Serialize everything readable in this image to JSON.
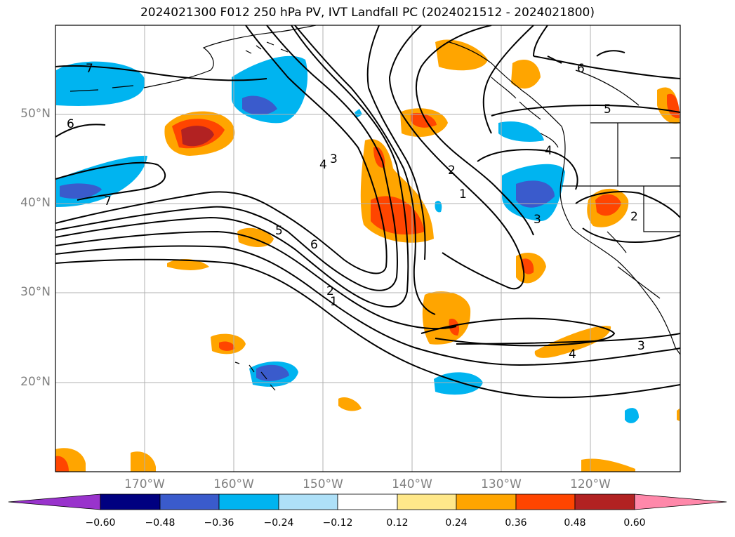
{
  "title": "2024021300 F012 250 hPa PV, IVT Landfall PC (2024021512 - 2024021800)",
  "map": {
    "projection": "lat-lon",
    "extent": {
      "lon_min": -180,
      "lon_max": -110,
      "lat_min": 10,
      "lat_max": 60
    },
    "lat_labels": [
      "50°N",
      "40°N",
      "30°N",
      "20°N"
    ],
    "lon_labels": [
      "170°W",
      "160°W",
      "150°W",
      "140°W",
      "130°W",
      "120°W"
    ],
    "contour_labels": [
      "7",
      "6",
      "3",
      "4",
      "2",
      "1",
      "5",
      "6",
      "2",
      "1",
      "3",
      "2",
      "6",
      "5",
      "4",
      "3",
      "4",
      "7"
    ],
    "colors": {
      "land_outline": "#000000",
      "grid": "#b0b0b0",
      "contour": "#000000"
    }
  },
  "colorbar": {
    "ticks": [
      "−0.60",
      "−0.48",
      "−0.36",
      "−0.24",
      "−0.12",
      "0.12",
      "0.24",
      "0.36",
      "0.48",
      "0.60"
    ],
    "colors": [
      "#9933cc",
      "#000080",
      "#3a5bcc",
      "#00b4f0",
      "#aee0f8",
      "#ffffff",
      "#ffe88a",
      "#ffa500",
      "#ff4500",
      "#b22222",
      "#ff88aa"
    ],
    "extend": "both"
  }
}
